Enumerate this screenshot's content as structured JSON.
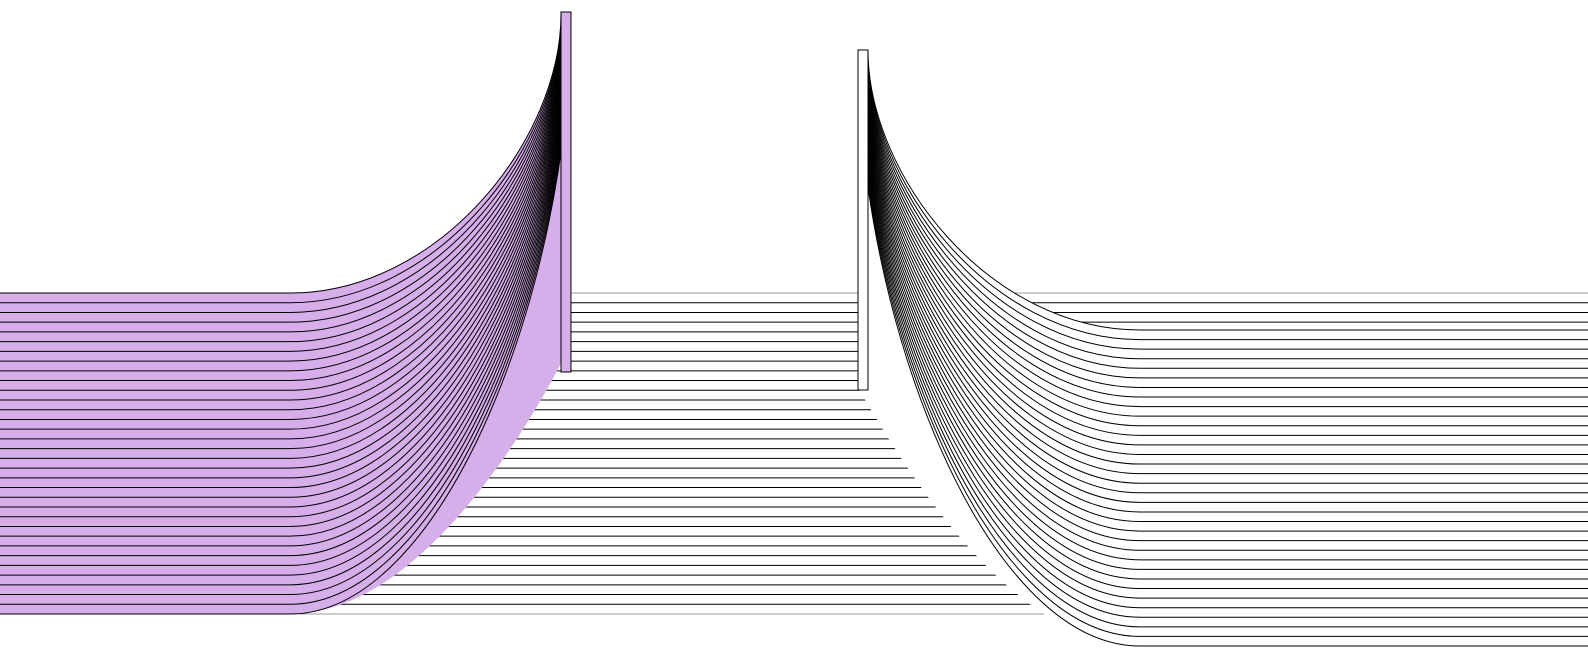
{
  "figure": {
    "background_color": "#ffffff",
    "stroke_color": "#000000",
    "guide_line_color": "#999999",
    "left_ribbon": {
      "fill_color": "#d6aeea",
      "strand_count": 34
    },
    "right_ribbon": {
      "fill_color": "#ffffff",
      "strand_count": 34
    },
    "middle_lines": {
      "line_count": 34
    }
  }
}
